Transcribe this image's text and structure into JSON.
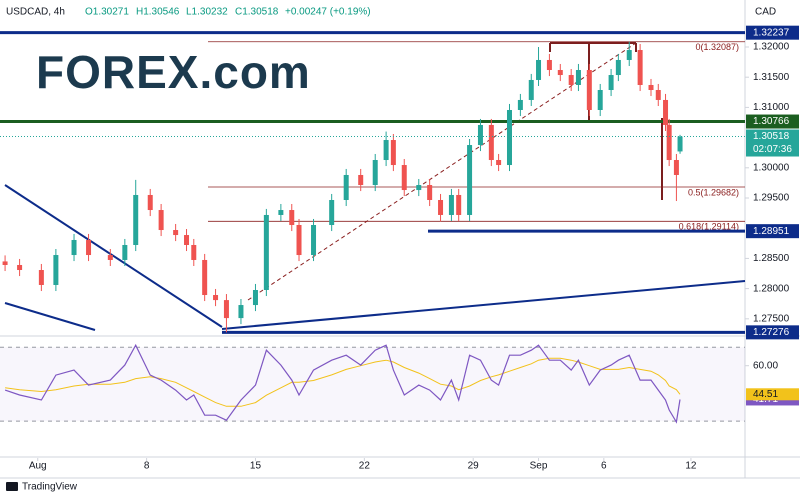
{
  "chart_data": {
    "type": "candlestick",
    "header": {
      "symbol": "USDCAD, 4h",
      "ohlc": [
        "O1.30271",
        "H1.30546",
        "L1.30232",
        "C1.30518"
      ],
      "change": "+0.00247 (+0.19%)"
    },
    "currency": "CAD",
    "logo": "FOREX.com",
    "footer": "TradingView",
    "countdown": "02:07:36",
    "x": [
      0,
      4,
      10,
      14,
      19,
      23,
      29,
      33,
      36,
      40,
      43,
      47,
      50,
      52,
      55,
      58,
      61,
      65,
      69,
      72,
      76,
      79,
      81,
      85,
      90,
      94,
      98,
      102,
      105,
      107,
      110,
      114,
      117,
      120,
      123,
      125,
      128,
      131,
      134,
      136,
      139,
      142,
      145,
      147,
      150,
      153,
      156,
      158,
      161,
      164,
      167,
      169,
      172,
      175,
      178,
      180,
      182,
      183,
      185,
      186
    ],
    "xlim": [
      -1.4,
      203.9
    ],
    "xticks": [
      {
        "value": 9,
        "label": "Aug"
      },
      {
        "value": 39,
        "label": "8"
      },
      {
        "value": 69,
        "label": "15"
      },
      {
        "value": 99,
        "label": "22"
      },
      {
        "value": 129,
        "label": "29"
      },
      {
        "value": 147,
        "label": "Sep"
      },
      {
        "value": 165,
        "label": "6"
      },
      {
        "value": 189,
        "label": "12"
      }
    ],
    "ylim": [
      1.27232,
      1.32778
    ],
    "yticks": [
      {
        "value": 1.32,
        "label": "1.32000"
      },
      {
        "value": 1.315,
        "label": "1.31500"
      },
      {
        "value": 1.31,
        "label": "1.31000"
      },
      {
        "value": 1.3,
        "label": "1.30000"
      },
      {
        "value": 1.295,
        "label": "1.29500"
      },
      {
        "value": 1.285,
        "label": "1.28500"
      },
      {
        "value": 1.28,
        "label": "1.28000"
      },
      {
        "value": 1.275,
        "label": "1.27500"
      }
    ],
    "up_color": "#26a69a",
    "down_color": "#ef5350",
    "series": [
      {
        "name": "USDCAD",
        "open": [
          1.2845,
          1.28391,
          1.28308,
          1.2806,
          1.28556,
          1.28805,
          1.28556,
          1.28474,
          1.28722,
          1.2955,
          1.29301,
          1.2897,
          1.28887,
          1.28722,
          1.28474,
          1.27894,
          1.2781,
          1.27512,
          1.27728,
          1.27977,
          1.29219,
          1.29301,
          1.29053,
          1.28556,
          1.29053,
          1.29467,
          1.29881,
          1.29715,
          1.30129,
          1.3046,
          1.30046,
          1.29632,
          1.29715,
          1.29467,
          1.29219,
          1.2955,
          1.29219,
          1.30377,
          1.30709,
          1.30129,
          1.30046,
          1.30957,
          1.31123,
          1.31454,
          1.31785,
          1.31619,
          1.31536,
          1.31371,
          1.31619,
          1.30957,
          1.31288,
          1.31536,
          1.31785,
          1.3195,
          1.31371,
          1.31288,
          1.31123,
          1.30709,
          1.30129,
          1.30271
        ],
        "high": [
          1.2855,
          1.28491,
          1.28408,
          1.28656,
          1.28905,
          1.28905,
          1.28656,
          1.28822,
          1.298,
          1.2965,
          1.29401,
          1.2907,
          1.28987,
          1.28822,
          1.28574,
          1.27994,
          1.2791,
          1.27828,
          1.28077,
          1.29319,
          1.29401,
          1.29401,
          1.29153,
          1.29153,
          1.29567,
          1.29981,
          1.29981,
          1.30229,
          1.306,
          1.3056,
          1.30146,
          1.29815,
          1.29815,
          1.29567,
          1.2965,
          1.2965,
          1.30477,
          1.30809,
          1.30809,
          1.30229,
          1.31057,
          1.31223,
          1.31554,
          1.32,
          1.31885,
          1.31719,
          1.31636,
          1.31719,
          1.31719,
          1.31388,
          1.31636,
          1.31885,
          1.32087,
          1.3205,
          1.31471,
          1.31388,
          1.31223,
          1.30809,
          1.30229,
          1.30546
        ],
        "low": [
          1.28291,
          1.28208,
          1.2796,
          1.2796,
          1.28456,
          1.28456,
          1.28374,
          1.28374,
          1.28622,
          1.29201,
          1.2887,
          1.28787,
          1.28622,
          1.28374,
          1.27794,
          1.2771,
          1.27276,
          1.27412,
          1.27628,
          1.27877,
          1.29119,
          1.28953,
          1.28456,
          1.28456,
          1.28953,
          1.29367,
          1.29615,
          1.29615,
          1.30029,
          1.29946,
          1.29532,
          1.29532,
          1.29367,
          1.29114,
          1.29119,
          1.29119,
          1.29119,
          1.30277,
          1.30029,
          1.29946,
          1.29946,
          1.30857,
          1.31023,
          1.31354,
          1.31519,
          1.31436,
          1.31271,
          1.31271,
          1.30857,
          1.30857,
          1.31188,
          1.31436,
          1.31685,
          1.31271,
          1.31188,
          1.31023,
          1.30609,
          1.30029,
          1.2945,
          1.30232
        ],
        "close": [
          1.28391,
          1.28308,
          1.2806,
          1.28556,
          1.28805,
          1.28556,
          1.28474,
          1.28722,
          1.2955,
          1.29301,
          1.2897,
          1.28887,
          1.28722,
          1.28474,
          1.27894,
          1.2781,
          1.27512,
          1.27728,
          1.27977,
          1.29219,
          1.29301,
          1.29053,
          1.28556,
          1.29053,
          1.29467,
          1.29881,
          1.29715,
          1.30129,
          1.3046,
          1.30046,
          1.29632,
          1.29715,
          1.29467,
          1.29219,
          1.2955,
          1.29219,
          1.30377,
          1.30709,
          1.30129,
          1.30046,
          1.30957,
          1.31123,
          1.31454,
          1.31785,
          1.31619,
          1.31536,
          1.31371,
          1.31619,
          1.30957,
          1.31288,
          1.31536,
          1.31785,
          1.3195,
          1.31371,
          1.31288,
          1.31123,
          1.30709,
          1.30129,
          1.29881,
          1.30518
        ]
      }
    ],
    "last_price": 1.30518,
    "last_color": "#26a69a",
    "levels": [
      {
        "value": 1.32237,
        "color": "#0d2c8a"
      },
      {
        "value": 1.30766,
        "color": "#1b5e20"
      },
      {
        "value": 1.28951,
        "color": "#0d2c8a"
      },
      {
        "value": 1.27276,
        "color": "#0d2c8a"
      }
    ],
    "fib": {
      "color": "#8b2020",
      "levels": [
        {
          "value": 1.32087,
          "label": "0(1.32087)"
        },
        {
          "value": 1.29682,
          "label": "0.5(1.29682)"
        },
        {
          "value": 1.29114,
          "label": "0.618(1.29114)"
        }
      ]
    },
    "rsi": {
      "ylim": [
        10,
        75
      ],
      "yticks": [
        {
          "value": 60,
          "label": "60.00"
        }
      ],
      "bands": [
        30,
        70
      ],
      "series": [
        {
          "name": "RSI",
          "color": "#7e57c2",
          "values": [
            46.8,
            44.1,
            41.4,
            54.9,
            57.6,
            49.5,
            52.2,
            60.3,
            71.1,
            54.9,
            52.2,
            46.8,
            41.4,
            44.1,
            33.2,
            33.2,
            30.5,
            41.4,
            49.5,
            68.4,
            60.3,
            52.2,
            44.1,
            57.6,
            63.0,
            65.7,
            60.3,
            68.4,
            71.1,
            57.6,
            44.1,
            49.5,
            46.8,
            41.4,
            52.2,
            41.4,
            65.7,
            63.0,
            52.2,
            49.5,
            65.7,
            65.7,
            68.4,
            71.1,
            63.0,
            63.0,
            57.6,
            63.0,
            49.5,
            57.6,
            60.3,
            63.0,
            65.7,
            52.2,
            52.2,
            46.8,
            41.4,
            36.0,
            29.5,
            41.71
          ]
        },
        {
          "name": "RSI MA",
          "color": "#f2c21b",
          "values": [
            48,
            47,
            46,
            47,
            49,
            50,
            50,
            51,
            53,
            54,
            53,
            51,
            48,
            46,
            43,
            40,
            38,
            38,
            40,
            44,
            48,
            51,
            51,
            52,
            55,
            58,
            60,
            62,
            63,
            62,
            59,
            56,
            53,
            50,
            49,
            47,
            49,
            52,
            54,
            55,
            57,
            59,
            61,
            63,
            64,
            64,
            63,
            62,
            60,
            58,
            58,
            58,
            59,
            58,
            57,
            55,
            52,
            49,
            47,
            44.51
          ]
        }
      ]
    }
  }
}
